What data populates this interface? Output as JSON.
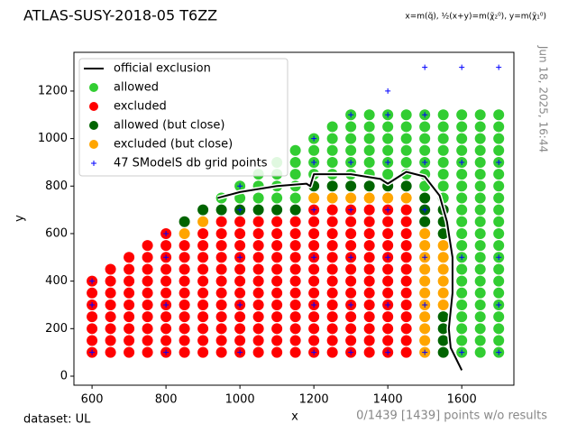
{
  "chart_data": {
    "type": "scatter",
    "title": "ATLAS-SUSY-2018-05 T6ZZ",
    "subtitle": "x=m(q̃), ½(x+y)=m(χ̃₂⁰), y=m(χ̃₁⁰)",
    "timestamp": "Jun 18, 2025, 16:44",
    "footer_left": "dataset: UL",
    "footer_right": "0/1439 [1439] points w/o results",
    "x_label": "x",
    "y_label": "y",
    "xlim": [
      551,
      1741
    ],
    "ylim": [
      -38,
      1363
    ],
    "xticks": [
      600,
      800,
      1000,
      1200,
      1400,
      1600
    ],
    "yticks": [
      0,
      200,
      400,
      600,
      800,
      1000,
      1200
    ],
    "legend": "upper left",
    "series": [
      {
        "name": "official exclusion",
        "color": "#000000",
        "marker": "line",
        "x": [
          940,
          1000,
          1100,
          1180,
          1190,
          1200,
          1300,
          1380,
          1400,
          1450,
          1500,
          1540,
          1560,
          1575,
          1575,
          1565,
          1570,
          1600
        ],
        "y": [
          750,
          775,
          800,
          810,
          800,
          850,
          850,
          830,
          810,
          860,
          840,
          760,
          650,
          500,
          350,
          200,
          120,
          25
        ]
      },
      {
        "name": "allowed",
        "color": "#32cd32",
        "marker": "circle",
        "x": [
          950,
          1000,
          1000,
          1050,
          1050,
          1050,
          1100,
          1100,
          1100,
          1100,
          1150,
          1150,
          1150,
          1150,
          1150,
          1200,
          1200,
          1200,
          1200,
          1250,
          1250,
          1250,
          1250,
          1250,
          1300,
          1300,
          1300,
          1300,
          1300,
          1300,
          1350,
          1350,
          1350,
          1350,
          1350,
          1350,
          1400,
          1400,
          1400,
          1400,
          1400,
          1400,
          1450,
          1450,
          1450,
          1450,
          1450,
          1450,
          1500,
          1500,
          1500,
          1500,
          1500,
          1500,
          1500,
          1550,
          1550,
          1550,
          1550,
          1550,
          1550,
          1550,
          1550,
          1600,
          1600,
          1600,
          1600,
          1600,
          1600,
          1600,
          1600,
          1600,
          1600,
          1600,
          1600,
          1600,
          1600,
          1600,
          1600,
          1600,
          1600,
          1600,
          1600,
          1600,
          1650,
          1650,
          1650,
          1650,
          1650,
          1650,
          1650,
          1650,
          1650,
          1650,
          1650,
          1650,
          1650,
          1650,
          1650,
          1650,
          1650,
          1650,
          1650,
          1650,
          1650,
          1700,
          1700,
          1700,
          1700,
          1700,
          1700,
          1700,
          1700,
          1700,
          1700,
          1700,
          1700,
          1700,
          1700,
          1700,
          1700,
          1700,
          1700,
          1700,
          1700,
          1700
        ],
        "y": [
          750,
          750,
          800,
          750,
          800,
          850,
          750,
          800,
          850,
          900,
          750,
          800,
          850,
          900,
          950,
          850,
          900,
          950,
          1000,
          850,
          900,
          950,
          1000,
          1050,
          850,
          900,
          950,
          1000,
          1050,
          1100,
          850,
          900,
          950,
          1000,
          1050,
          1100,
          850,
          900,
          950,
          1000,
          1050,
          1100,
          850,
          900,
          950,
          1000,
          1050,
          1100,
          800,
          850,
          900,
          950,
          1000,
          1050,
          1100,
          750,
          800,
          850,
          900,
          950,
          1000,
          1050,
          1100,
          100,
          150,
          200,
          250,
          300,
          350,
          400,
          450,
          500,
          550,
          600,
          650,
          700,
          750,
          800,
          850,
          900,
          950,
          1000,
          1050,
          1100,
          100,
          150,
          200,
          250,
          300,
          350,
          400,
          450,
          500,
          550,
          600,
          650,
          700,
          750,
          800,
          850,
          900,
          950,
          1000,
          1050,
          1100,
          100,
          150,
          200,
          250,
          300,
          350,
          400,
          450,
          500,
          550,
          600,
          650,
          700,
          750,
          800,
          850,
          900,
          950,
          1000,
          1050,
          1100
        ]
      },
      {
        "name": "excluded",
        "color": "#ff0000",
        "marker": "circle",
        "x": [
          600,
          600,
          600,
          600,
          600,
          600,
          600,
          650,
          650,
          650,
          650,
          650,
          650,
          650,
          650,
          700,
          700,
          700,
          700,
          700,
          700,
          700,
          700,
          700,
          750,
          750,
          750,
          750,
          750,
          750,
          750,
          750,
          750,
          750,
          800,
          800,
          800,
          800,
          800,
          800,
          800,
          800,
          800,
          800,
          800,
          850,
          850,
          850,
          850,
          850,
          850,
          850,
          850,
          850,
          850,
          900,
          900,
          900,
          900,
          900,
          900,
          900,
          900,
          900,
          900,
          900,
          950,
          950,
          950,
          950,
          950,
          950,
          950,
          950,
          950,
          950,
          950,
          950,
          1000,
          1000,
          1000,
          1000,
          1000,
          1000,
          1000,
          1000,
          1000,
          1000,
          1000,
          1000,
          1050,
          1050,
          1050,
          1050,
          1050,
          1050,
          1050,
          1050,
          1050,
          1050,
          1050,
          1050,
          1100,
          1100,
          1100,
          1100,
          1100,
          1100,
          1100,
          1100,
          1100,
          1100,
          1100,
          1100,
          1150,
          1150,
          1150,
          1150,
          1150,
          1150,
          1150,
          1150,
          1150,
          1150,
          1150,
          1150,
          1200,
          1200,
          1200,
          1200,
          1200,
          1200,
          1200,
          1200,
          1200,
          1200,
          1200,
          1200,
          1200,
          1250,
          1250,
          1250,
          1250,
          1250,
          1250,
          1250,
          1250,
          1250,
          1250,
          1250,
          1250,
          1250,
          1300,
          1300,
          1300,
          1300,
          1300,
          1300,
          1300,
          1300,
          1300,
          1300,
          1300,
          1300,
          1300,
          1350,
          1350,
          1350,
          1350,
          1350,
          1350,
          1350,
          1350,
          1350,
          1350,
          1350,
          1350,
          1350,
          1400,
          1400,
          1400,
          1400,
          1400,
          1400,
          1400,
          1400,
          1400,
          1400,
          1400,
          1400,
          1400,
          1450,
          1450,
          1450,
          1450,
          1450,
          1450,
          1450,
          1450,
          1450,
          1450,
          1450,
          1450,
          1450
        ],
        "y": [
          100,
          150,
          200,
          250,
          300,
          350,
          400,
          100,
          150,
          200,
          250,
          300,
          350,
          400,
          450,
          100,
          150,
          200,
          250,
          300,
          350,
          400,
          450,
          500,
          100,
          150,
          200,
          250,
          300,
          350,
          400,
          450,
          500,
          550,
          100,
          150,
          200,
          250,
          300,
          350,
          400,
          450,
          500,
          550,
          600,
          100,
          150,
          200,
          250,
          300,
          350,
          400,
          450,
          500,
          550,
          100,
          150,
          200,
          250,
          300,
          350,
          400,
          450,
          500,
          550,
          600,
          100,
          150,
          200,
          250,
          300,
          350,
          400,
          450,
          500,
          550,
          600,
          650,
          100,
          150,
          200,
          250,
          300,
          350,
          400,
          450,
          500,
          550,
          600,
          650,
          100,
          150,
          200,
          250,
          300,
          350,
          400,
          450,
          500,
          550,
          600,
          650,
          100,
          150,
          200,
          250,
          300,
          350,
          400,
          450,
          500,
          550,
          600,
          650,
          100,
          150,
          200,
          250,
          300,
          350,
          400,
          450,
          500,
          550,
          600,
          650,
          100,
          150,
          200,
          250,
          300,
          350,
          400,
          450,
          500,
          550,
          600,
          650,
          700,
          100,
          150,
          200,
          250,
          300,
          350,
          400,
          450,
          500,
          550,
          600,
          650,
          700,
          100,
          150,
          200,
          250,
          300,
          350,
          400,
          450,
          500,
          550,
          600,
          650,
          700,
          100,
          150,
          200,
          250,
          300,
          350,
          400,
          450,
          500,
          550,
          600,
          650,
          700,
          100,
          150,
          200,
          250,
          300,
          350,
          400,
          450,
          500,
          550,
          600,
          650,
          700,
          100,
          150,
          200,
          250,
          300,
          350,
          400,
          450,
          500,
          550,
          600,
          650,
          700
        ]
      },
      {
        "name": "allowed (but close)",
        "color": "#006400",
        "marker": "circle",
        "x": [
          850,
          900,
          950,
          1000,
          1050,
          1100,
          1150,
          1200,
          1250,
          1300,
          1350,
          1400,
          1450,
          1500,
          1500,
          1500,
          1550,
          1550,
          1550,
          1550,
          1550,
          1550,
          1550
        ],
        "y": [
          650,
          700,
          700,
          700,
          700,
          700,
          700,
          800,
          800,
          800,
          800,
          800,
          800,
          650,
          700,
          750,
          100,
          150,
          200,
          250,
          600,
          650,
          700
        ]
      },
      {
        "name": "excluded (but close)",
        "color": "#ffa500",
        "marker": "circle",
        "x": [
          850,
          900,
          1200,
          1250,
          1300,
          1350,
          1400,
          1450,
          1500,
          1500,
          1500,
          1500,
          1500,
          1500,
          1500,
          1500,
          1500,
          1500,
          1500,
          1550,
          1550,
          1550,
          1550,
          1550,
          1550
        ],
        "y": [
          600,
          650,
          750,
          750,
          750,
          750,
          750,
          750,
          100,
          150,
          200,
          250,
          300,
          350,
          400,
          450,
          500,
          550,
          600,
          300,
          350,
          400,
          450,
          500,
          550
        ]
      },
      {
        "name": "47 SModelS db grid points",
        "color": "#0000ff",
        "marker": "plus",
        "x": [
          600,
          600,
          600,
          800,
          800,
          800,
          800,
          1000,
          1000,
          1000,
          1000,
          1000,
          1200,
          1200,
          1200,
          1200,
          1200,
          1200,
          1300,
          1300,
          1300,
          1300,
          1300,
          1300,
          1400,
          1400,
          1400,
          1400,
          1400,
          1400,
          1400,
          1500,
          1500,
          1500,
          1500,
          1500,
          1500,
          1500,
          1600,
          1600,
          1600,
          1600,
          1700,
          1700,
          1700,
          1700,
          1700
        ],
        "y": [
          100,
          300,
          400,
          100,
          300,
          500,
          600,
          100,
          300,
          500,
          700,
          800,
          100,
          300,
          500,
          700,
          900,
          1000,
          100,
          300,
          500,
          700,
          900,
          1100,
          100,
          300,
          500,
          700,
          900,
          1100,
          1200,
          100,
          300,
          500,
          700,
          900,
          1100,
          1300,
          100,
          500,
          900,
          1300,
          100,
          300,
          500,
          900,
          1300
        ]
      }
    ]
  }
}
